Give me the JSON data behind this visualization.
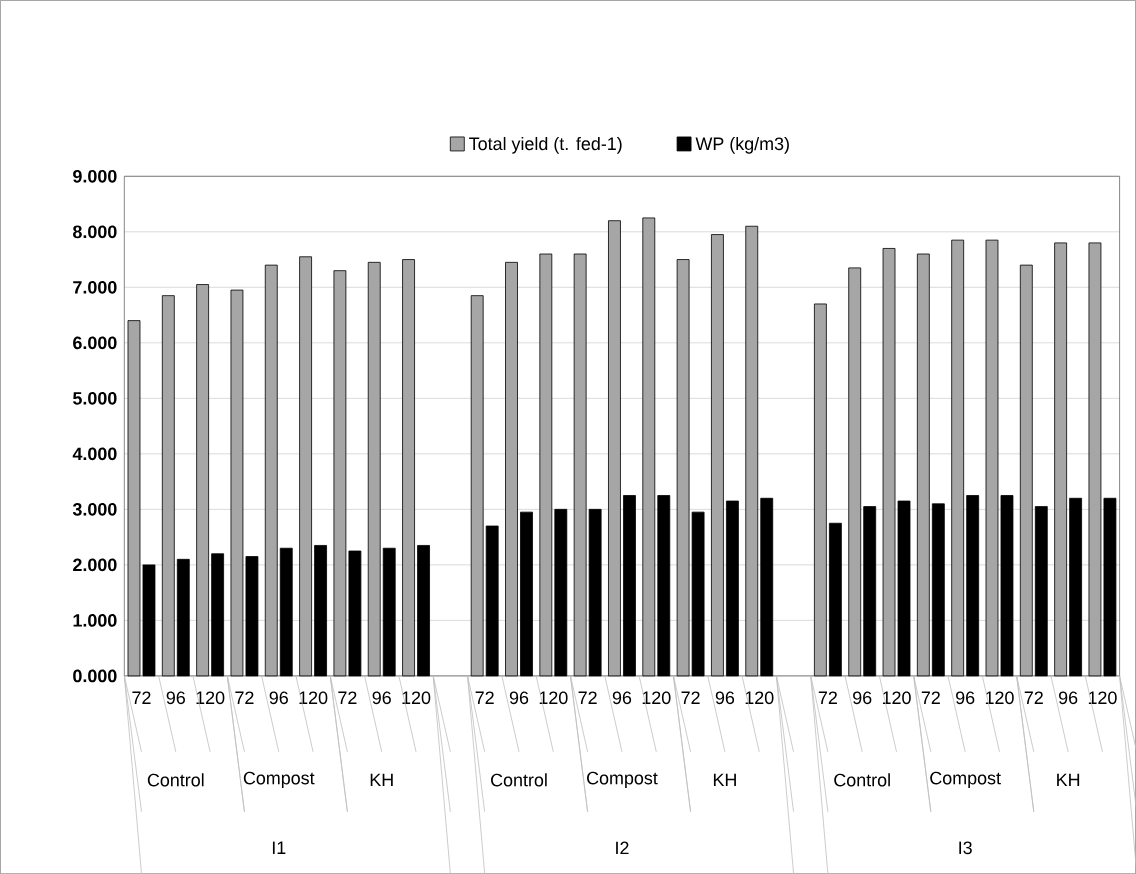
{
  "chart_data": {
    "type": "bar",
    "categories": [
      "72",
      "96",
      "120",
      "72",
      "96",
      "120",
      "72",
      "96",
      "120",
      null,
      "72",
      "96",
      "120",
      "72",
      "96",
      "120",
      "72",
      "96",
      "120",
      null,
      "72",
      "96",
      "120",
      "72",
      "96",
      "120",
      "72",
      "96",
      "120"
    ],
    "series": [
      {
        "name": "Total yield (t. fed-1)",
        "color": "#a6a6a6",
        "values": [
          6.4,
          6.85,
          7.05,
          6.95,
          7.4,
          7.55,
          7.3,
          7.45,
          7.5,
          null,
          6.85,
          7.45,
          7.6,
          7.6,
          8.2,
          8.25,
          7.5,
          7.95,
          8.1,
          null,
          6.7,
          7.35,
          7.7,
          7.6,
          7.85,
          7.85,
          7.4,
          7.8,
          7.8
        ]
      },
      {
        "name": "WP (kg/m3)",
        "color": "#000000",
        "values": [
          2.0,
          2.1,
          2.2,
          2.15,
          2.3,
          2.35,
          2.25,
          2.3,
          2.35,
          null,
          2.7,
          2.95,
          3.0,
          3.0,
          3.25,
          3.25,
          2.95,
          3.15,
          3.2,
          null,
          2.75,
          3.05,
          3.15,
          3.1,
          3.25,
          3.25,
          3.05,
          3.2,
          3.2
        ]
      }
    ],
    "ylim": [
      0,
      9
    ],
    "yticks": [
      {
        "value": 0,
        "label": "0.000"
      },
      {
        "value": 1,
        "label": "1.000"
      },
      {
        "value": 2,
        "label": "2.000"
      },
      {
        "value": 3,
        "label": "3.000"
      },
      {
        "value": 4,
        "label": "4.000"
      },
      {
        "value": 5,
        "label": "5.000"
      },
      {
        "value": 6,
        "label": "6.000"
      },
      {
        "value": 7,
        "label": "7.000"
      },
      {
        "value": 8,
        "label": "8.000"
      },
      {
        "value": 9,
        "label": "9.000"
      }
    ],
    "grid": "y",
    "legend": "top",
    "annotations": [
      "Control",
      "Compost",
      "KH",
      "Control",
      "Compost",
      "KH",
      "Control",
      "Compost",
      "KH",
      "I1",
      "I2",
      "I3"
    ]
  }
}
